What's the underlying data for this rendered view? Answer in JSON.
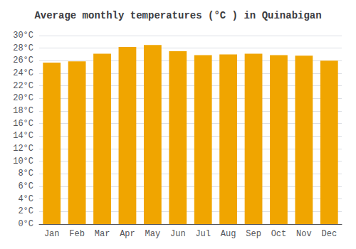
{
  "chart_data": {
    "type": "bar",
    "title": "Average monthly temperatures (°C ) in Quinabigan",
    "categories": [
      "Jan",
      "Feb",
      "Mar",
      "Apr",
      "May",
      "Jun",
      "Jul",
      "Aug",
      "Sep",
      "Oct",
      "Nov",
      "Dec"
    ],
    "values": [
      25.7,
      25.9,
      27.1,
      28.2,
      28.5,
      27.5,
      26.9,
      27.0,
      27.1,
      26.9,
      26.8,
      26.0
    ],
    "color": "#F0A500",
    "ylim": [
      0,
      30
    ],
    "yticks": [
      {
        "value": 0,
        "label": "0°C"
      },
      {
        "value": 2,
        "label": "2°C"
      },
      {
        "value": 4,
        "label": "4°C"
      },
      {
        "value": 6,
        "label": "6°C"
      },
      {
        "value": 8,
        "label": "8°C"
      },
      {
        "value": 10,
        "label": "10°C"
      },
      {
        "value": 12,
        "label": "12°C"
      },
      {
        "value": 14,
        "label": "14°C"
      },
      {
        "value": 16,
        "label": "16°C"
      },
      {
        "value": 18,
        "label": "18°C"
      },
      {
        "value": 20,
        "label": "20°C"
      },
      {
        "value": 22,
        "label": "22°C"
      },
      {
        "value": 24,
        "label": "24°C"
      },
      {
        "value": 26,
        "label": "26°C"
      },
      {
        "value": 28,
        "label": "28°C"
      },
      {
        "value": 30,
        "label": "30°C"
      }
    ],
    "grid": true
  }
}
